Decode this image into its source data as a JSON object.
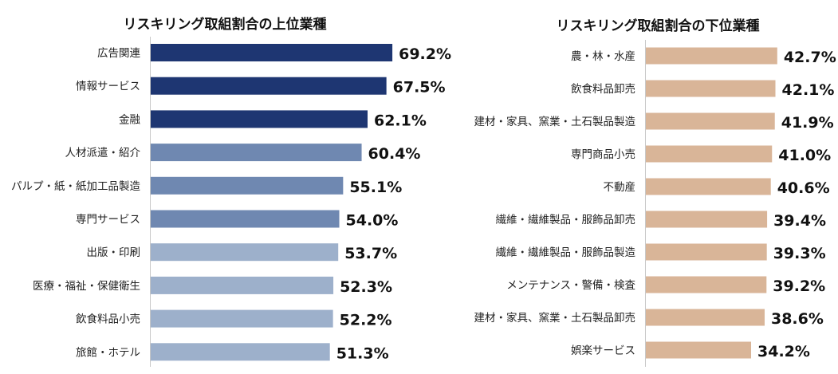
{
  "chart_data": [
    {
      "type": "bar",
      "orientation": "horizontal",
      "title": "リスキリング取組割合の上位業種",
      "categories": [
        "広告関連",
        "情報サービス",
        "金融",
        "人材派遣・紹介",
        "パルプ・紙・紙加工品製造",
        "専門サービス",
        "出版・印刷",
        "医療・福祉・保健衛生",
        "飲食料品小売",
        "旅館・ホテル"
      ],
      "values": [
        69.2,
        67.5,
        62.1,
        60.4,
        55.1,
        54.0,
        53.7,
        52.3,
        52.2,
        51.3
      ],
      "labels": [
        "69.2%",
        "67.5%",
        "62.1%",
        "60.4%",
        "55.1%",
        "54.0%",
        "53.7%",
        "52.3%",
        "52.2%",
        "51.3%"
      ],
      "colors": [
        "#1e3672",
        "#1e3672",
        "#1e3672",
        "#6f88b1",
        "#6f88b1",
        "#6f88b1",
        "#9db0cb",
        "#9db0cb",
        "#9db0cb",
        "#9db0cb"
      ],
      "xlabel": "",
      "ylabel": "",
      "xlim": [
        0,
        100
      ],
      "grid": false
    },
    {
      "type": "bar",
      "orientation": "horizontal",
      "title": "リスキリング取組割合の下位業種",
      "categories": [
        "農・林・水産",
        "飲食料品卸売",
        "建材・家具、窯業・土石製品製造",
        "専門商品小売",
        "不動産",
        "繊維・繊維製品・服飾品卸売",
        "繊維・繊維製品・服飾品製造",
        "メンテナンス・警備・検査",
        "建材・家具、窯業・土石製品卸売",
        "娯楽サービス"
      ],
      "values": [
        42.7,
        42.1,
        41.9,
        41.0,
        40.6,
        39.4,
        39.3,
        39.2,
        38.6,
        34.2
      ],
      "labels": [
        "42.7%",
        "42.1%",
        "41.9%",
        "41.0%",
        "40.6%",
        "39.4%",
        "39.3%",
        "39.2%",
        "38.6%",
        "34.2%"
      ],
      "colors": [
        "#d9b598"
      ],
      "xlabel": "",
      "ylabel": "",
      "xlim": [
        0,
        100
      ],
      "grid": false
    }
  ]
}
